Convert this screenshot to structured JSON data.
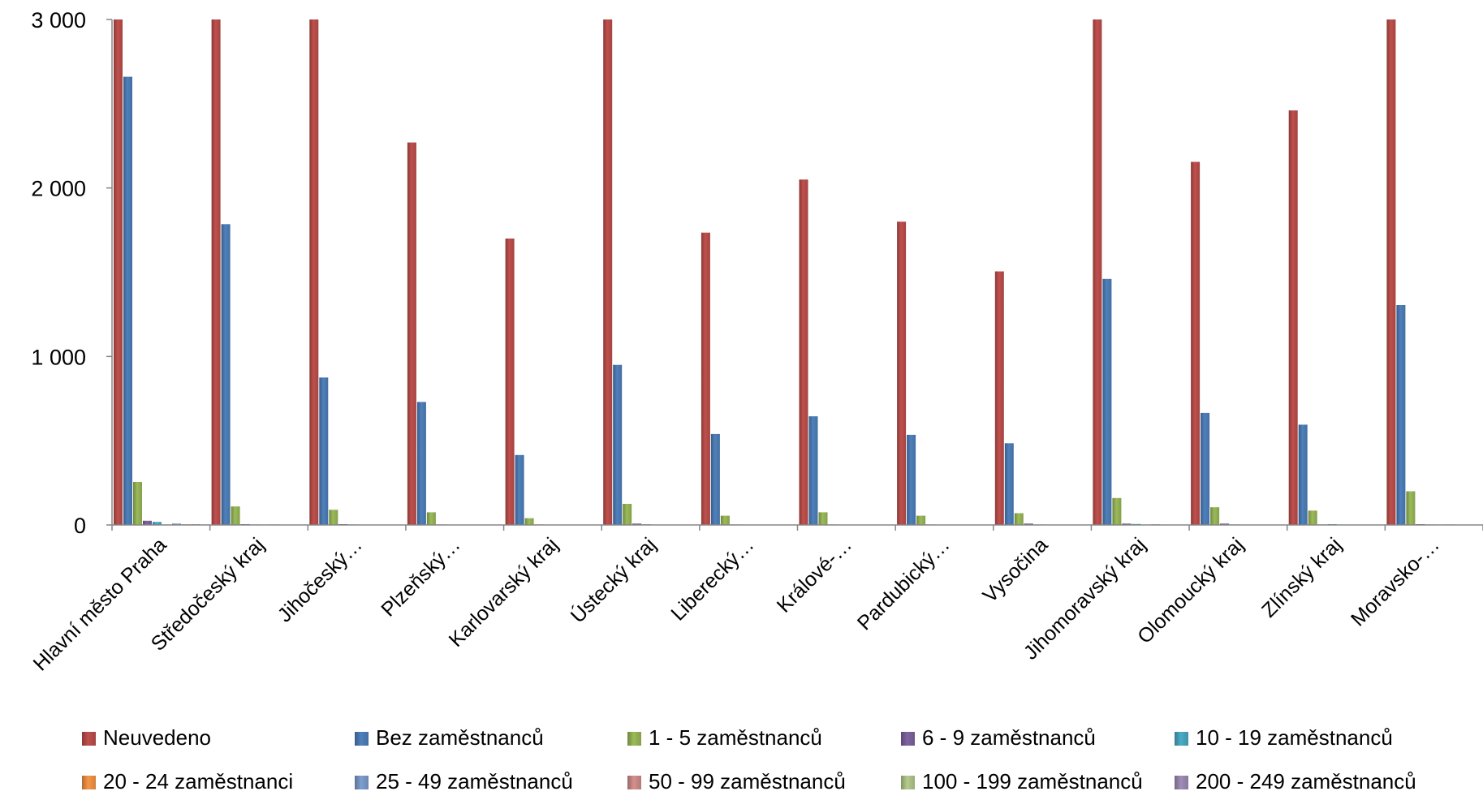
{
  "chart_data": {
    "type": "bar",
    "title": "",
    "xlabel": "",
    "ylabel": "",
    "ylim": [
      0,
      3000
    ],
    "y_ticks": [
      "0",
      "1 000",
      "2 000",
      "3 000"
    ],
    "y_tick_values": [
      0,
      1000,
      2000,
      3000
    ],
    "grid": false,
    "legend_position": "bottom",
    "categories": [
      "Hlavní město Praha",
      "Středočeský kraj",
      "Jihočeský…",
      "Plzeňský…",
      "Karlovarský kraj",
      "Ústecký kraj",
      "Liberecký…",
      "Králové-…",
      "Pardubický…",
      "Vysočina",
      "Jihomoravský kraj",
      "Olomoucký kraj",
      "Zlínský kraj",
      "Moravsko-…"
    ],
    "series": [
      {
        "name": "Neuvedeno",
        "color": "#c0504d",
        "values": [
          3000,
          3000,
          3000,
          2270,
          1700,
          3000,
          1735,
          2050,
          1800,
          1505,
          3000,
          2155,
          2460,
          3000
        ]
      },
      {
        "name": "Bez zaměstnanců",
        "color": "#4f81bd",
        "values": [
          2660,
          1785,
          875,
          730,
          415,
          950,
          540,
          645,
          535,
          485,
          1460,
          665,
          595,
          1305
        ]
      },
      {
        "name": "1 - 5 zaměstnanců",
        "color": "#9bbb59",
        "values": [
          255,
          110,
          90,
          75,
          40,
          125,
          55,
          75,
          55,
          70,
          160,
          105,
          85,
          200
        ]
      },
      {
        "name": "6 - 9 zaměstnanců",
        "color": "#8064a2",
        "values": [
          25,
          5,
          5,
          3,
          3,
          8,
          3,
          3,
          3,
          8,
          8,
          8,
          3,
          5
        ]
      },
      {
        "name": "10 - 19 zaměstnanců",
        "color": "#4bacc6",
        "values": [
          18,
          3,
          3,
          2,
          2,
          4,
          2,
          2,
          2,
          3,
          6,
          3,
          5,
          3
        ]
      },
      {
        "name": "20 - 24 zaměstnanci",
        "color": "#f79646",
        "values": [
          3,
          1,
          1,
          1,
          1,
          1,
          1,
          1,
          1,
          1,
          2,
          1,
          1,
          1
        ]
      },
      {
        "name": "25 - 49 zaměstnanců",
        "color": "#7e9fcf",
        "values": [
          8,
          3,
          2,
          2,
          1,
          2,
          2,
          2,
          2,
          2,
          4,
          2,
          2,
          3
        ]
      },
      {
        "name": "50 - 99 zaměstnanců",
        "color": "#d48f8d",
        "values": [
          4,
          2,
          1,
          1,
          1,
          1,
          1,
          1,
          1,
          1,
          2,
          1,
          1,
          2
        ]
      },
      {
        "name": "100 - 199 zaměstnanců",
        "color": "#b5cc8e",
        "values": [
          5,
          2,
          1,
          1,
          1,
          1,
          1,
          1,
          1,
          1,
          2,
          1,
          1,
          2
        ]
      },
      {
        "name": "200 - 249 zaměstnanců",
        "color": "#a08db8",
        "values": [
          3,
          1,
          1,
          1,
          1,
          1,
          1,
          1,
          1,
          1,
          1,
          1,
          1,
          1
        ]
      }
    ]
  }
}
